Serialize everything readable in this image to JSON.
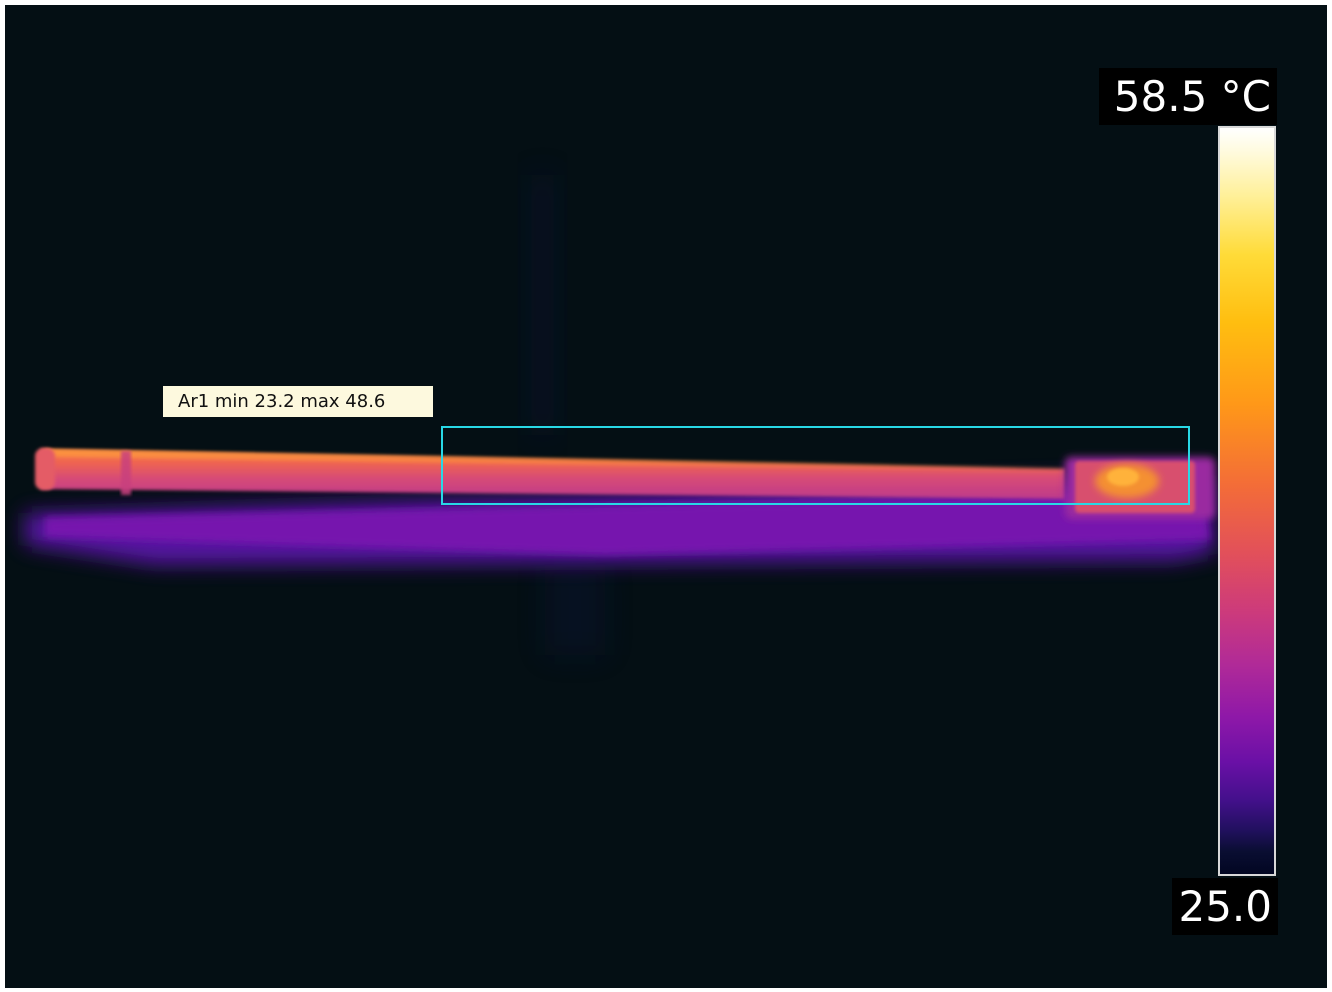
{
  "measurement": {
    "area_label": "Ar1 min 23.2 max 48.6",
    "area_name": "Ar1",
    "area_min": 23.2,
    "area_max": 48.6,
    "roi_color": "#28d8e6"
  },
  "scale": {
    "max_label": "58.5 °C",
    "min_label": "25.0",
    "max_value": 58.5,
    "min_value": 25.0,
    "unit": "°C",
    "palette": "iron"
  },
  "colors": {
    "background": "#040f14",
    "label_bg": "#fdf9de"
  }
}
